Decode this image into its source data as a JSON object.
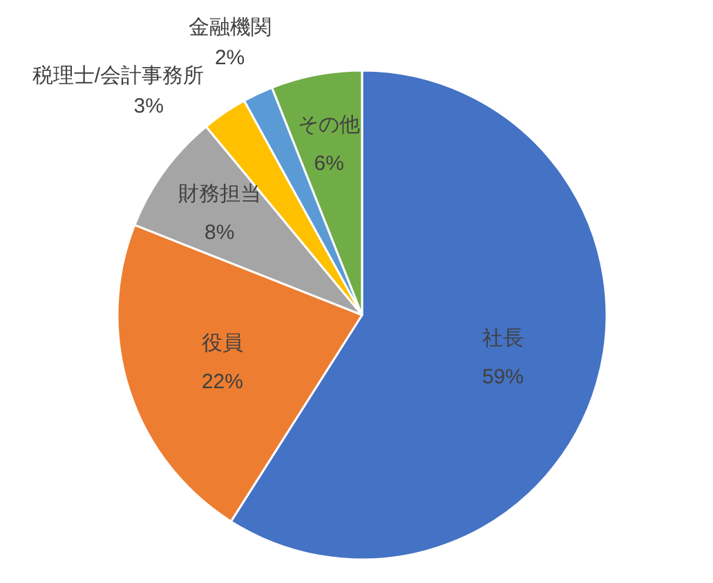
{
  "chart_data": {
    "type": "pie",
    "categories": [
      "社長",
      "役員",
      "財務担当",
      "税理士/会計事務所",
      "金融機関",
      "その他"
    ],
    "values": [
      59,
      22,
      8,
      3,
      2,
      6
    ],
    "colors": [
      "#4472c4",
      "#ed7d31",
      "#a5a5a5",
      "#ffc000",
      "#5b9bd5",
      "#70ad47"
    ],
    "value_labels": [
      "59%",
      "22%",
      "8%",
      "3%",
      "2%",
      "6%"
    ]
  }
}
